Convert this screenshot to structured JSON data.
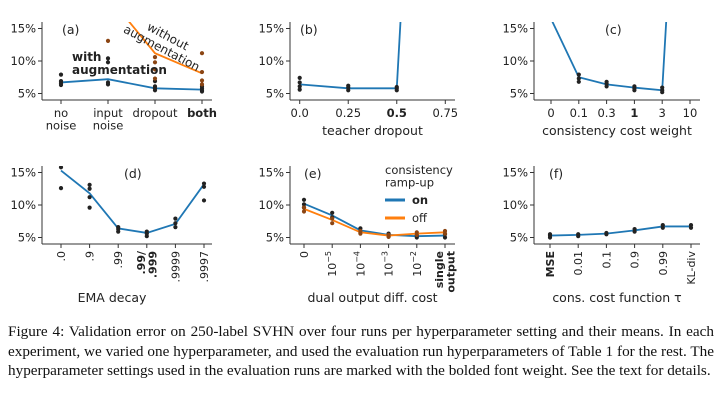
{
  "colors": {
    "blue": "#1f77b4",
    "orange": "#ff7f0e",
    "dot_blue": "#222222",
    "dot_orange": "#8b4513",
    "axis": "#333333"
  },
  "caption": "Figure 4:  Validation error on 250-label SVHN over four runs per hyperparameter setting and their means.  In each experiment, we varied one hyperparameter, and used the evaluation run hyperparameters of Table 1 for the rest. The hyperparameter settings used in the evaluation runs are marked with the bolded font weight. See the text for details.",
  "chart_data": [
    {
      "id": "a",
      "panel_label": "(a)",
      "type": "line",
      "xlabel": "",
      "ylim": [
        4,
        16
      ],
      "yticks": [
        5,
        10,
        15
      ],
      "ytick_labels": [
        "5%",
        "10%",
        "15%"
      ],
      "categories": [
        "no\nnoise",
        "input\nnoise",
        "dropout",
        "both"
      ],
      "bold_index": 3,
      "series": [
        {
          "name": "with augmentation",
          "color": "blue",
          "values": [
            6.7,
            7.2,
            5.8,
            5.6
          ],
          "runs": [
            [
              6.3,
              6.6,
              6.9,
              7.9
            ],
            [
              6.4,
              6.7,
              9.8,
              10.4
            ],
            [
              5.5,
              5.8,
              6.1,
              6.9
            ],
            [
              5.3,
              5.5,
              5.8,
              6.1
            ]
          ]
        },
        {
          "name": "without augmentation",
          "color": "orange",
          "values": [
            null,
            20.0,
            11.2,
            8.1
          ],
          "runs": [
            [],
            [
              13.1
            ],
            [
              7.3,
              8.7,
              9.8,
              10.6
            ],
            [
              6.4,
              7.0,
              8.3,
              11.2
            ]
          ]
        }
      ],
      "annotations": [
        {
          "text": "with\naugmentation",
          "bold": true
        },
        {
          "text": "without\naugmentation",
          "bold": false
        }
      ]
    },
    {
      "id": "b",
      "panel_label": "(b)",
      "type": "line",
      "xlabel": "teacher dropout",
      "ylim": [
        4,
        16
      ],
      "yticks": [
        5,
        10,
        15
      ],
      "ytick_labels": [
        "5%",
        "10%",
        "15%"
      ],
      "xlim": [
        -0.05,
        0.8
      ],
      "xticks": [
        0.0,
        0.25,
        0.5,
        0.75
      ],
      "xtick_labels": [
        "0.0",
        "0.25",
        "0.5",
        "0.75"
      ],
      "bold_index": 2,
      "series": [
        {
          "color": "blue",
          "x": [
            0.0,
            0.25,
            0.5,
            0.52
          ],
          "values": [
            6.4,
            5.8,
            5.8,
            16.5
          ],
          "runs": [
            [
              0.0,
              5.6
            ],
            [
              0.0,
              6.1
            ],
            [
              0.0,
              6.7
            ],
            [
              0.0,
              7.4
            ],
            [
              0.25,
              5.5
            ],
            [
              0.25,
              5.9
            ],
            [
              0.25,
              6.2
            ],
            [
              0.5,
              5.5
            ],
            [
              0.5,
              5.8
            ],
            [
              0.5,
              6.0
            ]
          ]
        }
      ]
    },
    {
      "id": "c",
      "panel_label": "(c)",
      "type": "line",
      "xlabel": "consistency cost weight",
      "ylim": [
        4,
        16
      ],
      "yticks": [
        5,
        10,
        15
      ],
      "ytick_labels": [
        "5%",
        "10%",
        "15%"
      ],
      "categories": [
        "0",
        "0.1",
        "0.3",
        "1",
        "3",
        "10"
      ],
      "bold_index": 3,
      "series": [
        {
          "color": "blue",
          "xi": [
            0,
            1,
            2,
            3,
            4,
            4.15
          ],
          "values": [
            16.5,
            7.5,
            6.4,
            5.9,
            5.5,
            16.5
          ],
          "runs": [
            [
              1,
              6.8
            ],
            [
              1,
              7.3
            ],
            [
              1,
              7.9
            ],
            [
              2,
              6.1
            ],
            [
              2,
              6.5
            ],
            [
              2,
              6.8
            ],
            [
              3,
              5.5
            ],
            [
              3,
              5.8
            ],
            [
              3,
              6.1
            ],
            [
              4,
              5.2
            ],
            [
              4,
              5.5
            ],
            [
              4,
              5.9
            ]
          ]
        }
      ]
    },
    {
      "id": "d",
      "panel_label": "(d)",
      "type": "line",
      "xlabel": "EMA decay",
      "ylim": [
        4,
        16
      ],
      "yticks": [
        5,
        10,
        15
      ],
      "ytick_labels": [
        "5%",
        "10%",
        "15%"
      ],
      "categories": [
        ".0",
        ".9",
        ".99",
        ".999",
        ".9999",
        ".9997"
      ],
      "category_labels": [
        ".0",
        ".9",
        ".99",
        ".99/\n.999",
        ".9999",
        ".9997"
      ],
      "bold_index": 3,
      "series": [
        {
          "color": "blue",
          "values": [
            15.3,
            11.8,
            6.4,
            5.7,
            7.1,
            13.2
          ],
          "runs": [
            [
              0,
              12.6
            ],
            [
              0,
              15.8
            ],
            [
              1,
              9.6
            ],
            [
              1,
              11.2
            ],
            [
              1,
              12.5
            ],
            [
              1,
              13.1
            ],
            [
              2,
              5.9
            ],
            [
              2,
              6.3
            ],
            [
              2,
              6.6
            ],
            [
              3,
              5.2
            ],
            [
              3,
              5.6
            ],
            [
              3,
              5.9
            ],
            [
              4,
              6.6
            ],
            [
              4,
              7.2
            ],
            [
              4,
              7.9
            ],
            [
              5,
              10.7
            ],
            [
              5,
              12.8
            ],
            [
              5,
              13.3
            ]
          ]
        }
      ]
    },
    {
      "id": "e",
      "panel_label": "(e)",
      "type": "line",
      "xlabel": "dual output diff. cost",
      "ylim": [
        4,
        16
      ],
      "yticks": [
        5,
        10,
        15
      ],
      "ytick_labels": [
        "5%",
        "10%",
        "15%"
      ],
      "categories": [
        "0",
        "10^-5",
        "10^-4",
        "10^-3",
        "10^-2",
        "single\noutput"
      ],
      "bold_index": 5,
      "legend_title": "consistency\nramp-up",
      "legend_placement": "top-right",
      "series": [
        {
          "name": "on",
          "color": "blue",
          "values": [
            10.2,
            8.4,
            6.1,
            5.4,
            5.2,
            5.3
          ],
          "runs": [
            [
              0,
              9.6
            ],
            [
              0,
              10.1
            ],
            [
              0,
              10.8
            ],
            [
              1,
              8.1
            ],
            [
              1,
              8.8
            ],
            [
              2,
              5.8
            ],
            [
              2,
              6.4
            ],
            [
              3,
              5.2
            ],
            [
              3,
              5.6
            ],
            [
              4,
              5.0
            ],
            [
              4,
              5.3
            ],
            [
              5,
              5.0
            ],
            [
              5,
              5.5
            ]
          ]
        },
        {
          "name": "off",
          "color": "orange",
          "values": [
            9.4,
            7.7,
            5.8,
            5.3,
            5.6,
            5.8
          ],
          "runs": [
            [
              0,
              9.0
            ],
            [
              0,
              9.6
            ],
            [
              1,
              7.2
            ],
            [
              1,
              7.9
            ],
            [
              2,
              5.6
            ],
            [
              2,
              6.0
            ],
            [
              3,
              5.1
            ],
            [
              3,
              5.4
            ],
            [
              4,
              5.4
            ],
            [
              4,
              5.8
            ],
            [
              5,
              5.6
            ],
            [
              5,
              6.0
            ]
          ]
        }
      ]
    },
    {
      "id": "f",
      "panel_label": "(f)",
      "type": "line",
      "xlabel": "cons. cost function τ",
      "ylim": [
        4,
        16
      ],
      "yticks": [
        5,
        10,
        15
      ],
      "ytick_labels": [
        "5%",
        "10%",
        "15%"
      ],
      "categories": [
        "MSE",
        "0.01",
        "0.1",
        "0.9",
        "0.99",
        "KL-div"
      ],
      "bold_index": 0,
      "series": [
        {
          "color": "blue",
          "values": [
            5.3,
            5.4,
            5.6,
            6.1,
            6.7,
            6.7
          ],
          "runs": [
            [
              0,
              5.0
            ],
            [
              0,
              5.3
            ],
            [
              0,
              5.5
            ],
            [
              1,
              5.2
            ],
            [
              1,
              5.5
            ],
            [
              2,
              5.5
            ],
            [
              2,
              5.7
            ],
            [
              3,
              5.9
            ],
            [
              3,
              6.3
            ],
            [
              4,
              6.5
            ],
            [
              4,
              6.9
            ],
            [
              5,
              6.5
            ],
            [
              5,
              6.9
            ]
          ]
        }
      ]
    }
  ]
}
